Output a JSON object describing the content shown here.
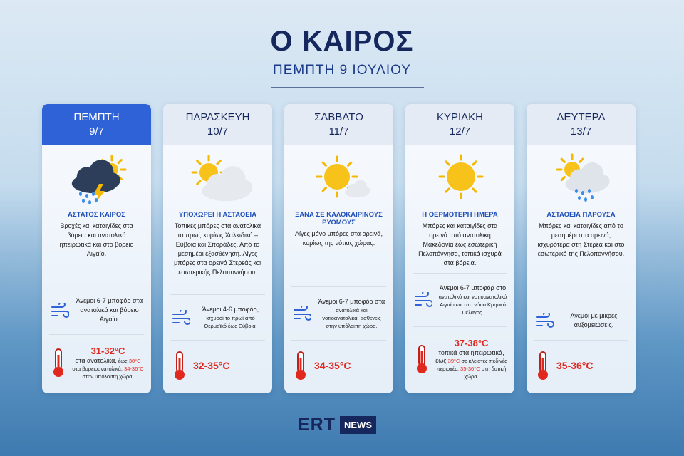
{
  "header": {
    "title": "Ο ΚΑΙΡΟΣ",
    "subtitle": "ΠΕΜΠΤΗ 9 ΙΟΥΛΙΟΥ"
  },
  "cards": [
    {
      "day": "ΠΕΜΠΤΗ",
      "date": "9/7",
      "headline": "ΑΣΤΑΤΟΣ ΚΑΙΡΟΣ",
      "description": "Βροχές και καταιγίδες στα βόρεια και ανατολικά ηπειρωτικά και στο βόρειο Αιγαίο.",
      "wind": [
        "Άνεμοι 6-7 μποφόρ στα ανατολικά και βόρειο Αιγαίο."
      ],
      "temperature": {
        "main": "31-32°C",
        "details": [
          {
            "text": "στα ανατολικά,",
            "color": "#222222"
          },
          {
            "text": "έως",
            "color": "#222222"
          },
          {
            "text": "30°C",
            "color": "#e0281e"
          },
          {
            "text": "στα βορειοανατολικά,",
            "color": "#222222"
          },
          {
            "text": "34-36°C",
            "color": "#e0281e"
          },
          {
            "text": "στην υπόλοιπη χώρα.",
            "color": "#222222"
          }
        ]
      }
    },
    {
      "day": "ΠΑΡΑΣΚΕΥΗ",
      "date": "10/7",
      "headline": "ΥΠΟΧΩΡΕΙ Η ΑΣΤΑΘΕΙΑ",
      "description": "Τοπικές μπόρες στα ανατολικά το πρωί, κυρίως Χαλκιδική – Εύβοια και Σποράδες. Από το μεσημέρι εξασθένηση. Λίγες μπόρες στα ορεινά Στερεάς και εσωτερικής Πελοποννήσου.",
      "wind": [
        "Άνεμοι 4-6 μποφόρ,",
        "ισχυροί το πρωί από Θερμαϊκό έως Εύβοια."
      ],
      "temperature": {
        "main": "32-35°C",
        "details": []
      }
    },
    {
      "day": "ΣΑΒΒΑΤΟ",
      "date": "11/7",
      "headline": "ΞΑΝΑ ΣΕ ΚΑΛΟΚΑΙΡΙΝΟΥΣ ΡΥΘΜΟΥΣ",
      "description": "Λίγες μόνο μπόρες στα ορεινά, κυρίως της νότιας χώρας.",
      "wind": [
        "Άνεμοι 6-7 μποφόρ στα",
        "ανατολικά και νοτιοανατολικά, ασθενείς στην υπόλοιπη χώρα."
      ],
      "temperature": {
        "main": "34-35°C",
        "details": []
      }
    },
    {
      "day": "ΚΥΡΙΑΚΗ",
      "date": "12/7",
      "headline": "Η ΘΕΡΜΟΤΕΡΗ ΗΜΕΡΑ",
      "description": "Μπόρες και καταιγίδες στα ορεινά από ανατολική Μακεδονία έως εσωτερική Πελοπόννησο, τοπικά ισχυρά στα βόρεια.",
      "wind": [
        "Άνεμοι 6-7 μποφόρ στο",
        "ανατολικό και νοτιοανατολικό Αιγαίο και στο νότιο Κρητικό Πέλαγος."
      ],
      "temperature": {
        "main": "37-38°C",
        "details": [
          {
            "text": "τοπικά στα ηπειρωτικά, έως",
            "color": "#222222"
          },
          {
            "text": "39°C",
            "color": "#e0281e"
          },
          {
            "text": "σε κλειστές πεδινές περιοχές.",
            "color": "#222222"
          },
          {
            "text": "35-36°C",
            "color": "#e0281e"
          },
          {
            "text": "στη δυτική χώρα.",
            "color": "#222222"
          }
        ]
      }
    },
    {
      "day": "ΔΕΥΤΕΡΑ",
      "date": "13/7",
      "headline": "ΑΣΤΑΘΕΙΑ ΠΑΡΟΥΣΑ",
      "description": "Μπόρες και καταιγίδες από το μεσημέρι στα ορεινά, ισχυρότερα στη Στερεά και στο εσωτερικό της Πελοποννήσου.",
      "wind": [
        "Άνεμοι με μικρές αυξομειώσεις."
      ],
      "temperature": {
        "main": "35-36°C",
        "details": []
      }
    }
  ],
  "footer": {
    "brand": "ERT",
    "badge": "NEWS"
  }
}
